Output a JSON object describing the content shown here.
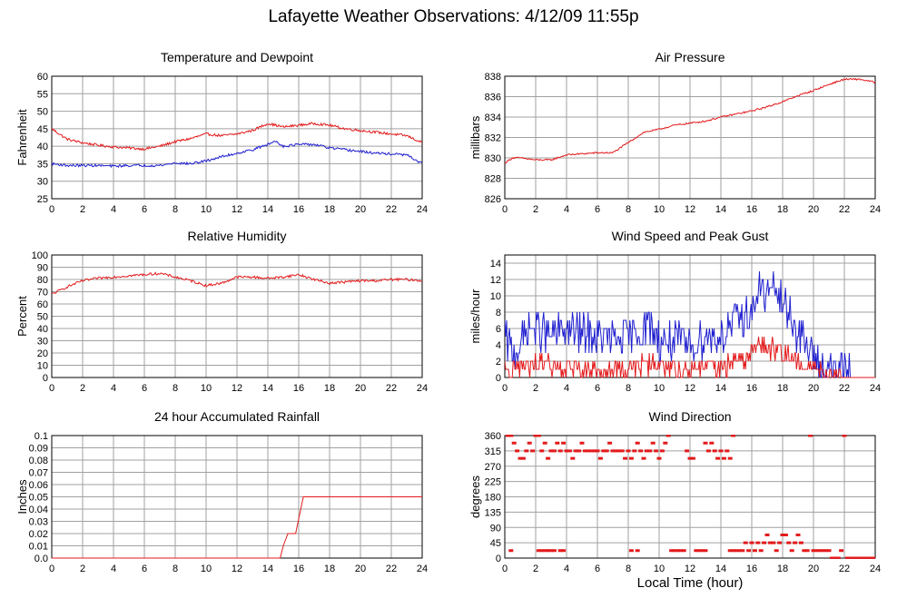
{
  "page": {
    "title": "Lafayette Weather Observations: 4/12/09 11:55p",
    "xlabel": "Local Time (hour)"
  },
  "colors": {
    "red": "#e31a1c",
    "blue": "#1f1fd0",
    "grid": "#a0a0a0"
  },
  "chart_data": [
    {
      "id": "temp",
      "type": "line",
      "title": "Temperature and Dewpoint",
      "ylabel": "Fahrenheit",
      "xlim": [
        0,
        24
      ],
      "ylim": [
        25,
        60
      ],
      "xticks": [
        0,
        2,
        4,
        6,
        8,
        10,
        12,
        14,
        16,
        18,
        20,
        22,
        24
      ],
      "yticks": [
        25,
        30,
        35,
        40,
        45,
        50,
        55,
        60
      ],
      "series": [
        {
          "color": "red",
          "noise": 0.35,
          "x": [
            0,
            0.5,
            1,
            2,
            3,
            4,
            5,
            6,
            7,
            8,
            9,
            10,
            11,
            12,
            13,
            14,
            14.5,
            15,
            16,
            17,
            18,
            19,
            20,
            21,
            22,
            23,
            24
          ],
          "y": [
            45,
            43.5,
            42,
            41,
            40.3,
            39.8,
            39.5,
            39.2,
            40,
            41.3,
            42.2,
            43.5,
            43,
            43.5,
            44.5,
            46.5,
            46,
            45.5,
            46,
            46.5,
            46,
            45,
            44.5,
            44,
            43.5,
            43,
            41
          ]
        },
        {
          "color": "blue",
          "noise": 0.35,
          "x": [
            0,
            1,
            2,
            3,
            4,
            5,
            6,
            7,
            8,
            9,
            10,
            11,
            12,
            13,
            14,
            14.5,
            15,
            16,
            17,
            18,
            19,
            20,
            21,
            22,
            23,
            24
          ],
          "y": [
            35,
            34.5,
            34.5,
            34.5,
            34.3,
            34.5,
            34.5,
            34.5,
            35.2,
            35,
            35.8,
            37,
            38,
            39,
            40.5,
            41.5,
            40,
            40.5,
            40.5,
            39.5,
            39,
            38.5,
            38,
            37.8,
            37.5,
            35
          ]
        }
      ]
    },
    {
      "id": "pressure",
      "type": "line",
      "title": "Air Pressure",
      "ylabel": "millibars",
      "xlim": [
        0,
        24
      ],
      "ylim": [
        826,
        838
      ],
      "xticks": [
        0,
        2,
        4,
        6,
        8,
        10,
        12,
        14,
        16,
        18,
        20,
        22,
        24
      ],
      "yticks": [
        826,
        828,
        830,
        832,
        834,
        836,
        838
      ],
      "series": [
        {
          "color": "red",
          "noise": 0.08,
          "x": [
            0,
            0.5,
            1,
            2,
            3,
            4,
            5,
            6,
            7,
            8,
            9,
            10,
            11,
            12,
            13,
            14,
            15,
            16,
            17,
            18,
            19,
            20,
            21,
            22,
            23,
            24
          ],
          "y": [
            829.5,
            830,
            830,
            829.8,
            829.8,
            830.3,
            830.4,
            830.5,
            830.5,
            831.5,
            832.5,
            832.8,
            833.2,
            833.4,
            833.6,
            834,
            834.3,
            834.6,
            835,
            835.5,
            836.1,
            836.6,
            837.2,
            837.7,
            837.7,
            837.4
          ]
        }
      ]
    },
    {
      "id": "humidity",
      "type": "line",
      "title": "Relative Humidity",
      "ylabel": "Percent",
      "xlim": [
        0,
        24
      ],
      "ylim": [
        0,
        100
      ],
      "xticks": [
        0,
        2,
        4,
        6,
        8,
        10,
        12,
        14,
        16,
        18,
        20,
        22,
        24
      ],
      "yticks": [
        0,
        10,
        20,
        30,
        40,
        50,
        60,
        70,
        80,
        90,
        100
      ],
      "series": [
        {
          "color": "red",
          "noise": 1.0,
          "x": [
            0,
            1,
            2,
            3,
            4,
            5,
            6,
            7,
            8,
            9,
            10,
            11,
            12,
            13,
            14,
            15,
            16,
            17,
            18,
            19,
            20,
            21,
            22,
            23,
            24
          ],
          "y": [
            68,
            74,
            79,
            81,
            82,
            83,
            84,
            85,
            82,
            79,
            75,
            77,
            82,
            82,
            81,
            82,
            84,
            80,
            77,
            78,
            79,
            79,
            80,
            80,
            79
          ]
        }
      ]
    },
    {
      "id": "wind",
      "type": "line",
      "title": "Wind Speed and Peak Gust",
      "ylabel": "miles/hour",
      "xlim": [
        0,
        24
      ],
      "ylim": [
        0,
        15
      ],
      "xticks": [
        0,
        2,
        4,
        6,
        8,
        10,
        12,
        14,
        16,
        18,
        20,
        22,
        24
      ],
      "yticks": [
        0,
        2,
        4,
        6,
        8,
        10,
        12,
        14
      ],
      "series": [
        {
          "color": "blue",
          "noise": 2.4,
          "x": [
            0,
            0.5,
            1,
            1.5,
            2,
            3,
            4,
            5,
            6,
            7,
            8,
            9,
            9.5,
            10,
            11,
            12,
            13,
            14,
            15,
            16,
            16.5,
            17,
            17.5,
            18,
            18.5,
            19,
            19.5,
            20,
            20.5,
            21,
            21.5,
            22,
            22.3,
            22.4,
            24
          ],
          "y": [
            5,
            3,
            4,
            6,
            6,
            5,
            6,
            5.5,
            5,
            4.5,
            5,
            6,
            6.5,
            4.5,
            4.5,
            4,
            5,
            5,
            7,
            8,
            11,
            10,
            11,
            9,
            8,
            5,
            4,
            2.5,
            1.5,
            1,
            0.5,
            1,
            1,
            0,
            0
          ]
        },
        {
          "color": "red",
          "noise": 1.3,
          "x": [
            0,
            1,
            2,
            3,
            4,
            5,
            6,
            7,
            8,
            9,
            10,
            11,
            12,
            13,
            14,
            15,
            16,
            16.5,
            17,
            18,
            18.5,
            19,
            20,
            20.5,
            21,
            22,
            24
          ],
          "y": [
            1.5,
            1,
            1.5,
            1.5,
            1.2,
            1.2,
            1,
            0.8,
            1.2,
            1.5,
            1.5,
            1.2,
            1,
            1,
            1.2,
            2,
            3,
            4,
            3.5,
            3,
            2.5,
            2,
            1,
            0.5,
            0.3,
            0,
            0
          ]
        }
      ]
    },
    {
      "id": "rain",
      "type": "line",
      "title": "24 hour Accumulated Rainfall",
      "ylabel": "Inches",
      "xlim": [
        0,
        24
      ],
      "ylim": [
        0,
        0.1
      ],
      "xticks": [
        0,
        2,
        4,
        6,
        8,
        10,
        12,
        14,
        16,
        18,
        20,
        22,
        24
      ],
      "yticks": [
        0.0,
        0.01,
        0.02,
        0.03,
        0.04,
        0.05,
        0.06,
        0.07,
        0.08,
        0.09,
        0.1
      ],
      "ytick_labels": [
        "0.0",
        "0.01",
        "0.02",
        "0.03",
        "0.04",
        "0.05",
        "0.06",
        "0.07",
        "0.08",
        "0.09",
        "0.1"
      ],
      "series": [
        {
          "color": "red",
          "noise": 0,
          "x": [
            0,
            14.8,
            14.8,
            15.0,
            15.0,
            15.3,
            15.3,
            15.8,
            15.8,
            16.3,
            16.3,
            24
          ],
          "y": [
            0,
            0,
            0.0,
            0.01,
            0.01,
            0.02,
            0.02,
            0.02,
            0.02,
            0.05,
            0.05,
            0.05
          ]
        }
      ]
    },
    {
      "id": "winddir",
      "type": "scatter",
      "title": "Wind Direction",
      "ylabel": "degrees",
      "xlim": [
        0,
        24
      ],
      "ylim": [
        0,
        360
      ],
      "xticks": [
        0,
        2,
        4,
        6,
        8,
        10,
        12,
        14,
        16,
        18,
        20,
        22,
        24
      ],
      "yticks": [
        0,
        45,
        90,
        135,
        180,
        225,
        270,
        315,
        360
      ],
      "series": [
        {
          "color": "red",
          "points": [
            [
              0.2,
              360
            ],
            [
              0.4,
              360
            ],
            [
              0.6,
              338
            ],
            [
              0.8,
              315
            ],
            [
              1.0,
              293
            ],
            [
              1.2,
              293
            ],
            [
              0.4,
              22
            ],
            [
              1.4,
              315
            ],
            [
              1.6,
              338
            ],
            [
              1.8,
              315
            ],
            [
              2.0,
              360
            ],
            [
              2.2,
              360
            ],
            [
              2.4,
              315
            ],
            [
              2.6,
              338
            ],
            [
              2.2,
              22
            ],
            [
              2.4,
              22
            ],
            [
              2.6,
              22
            ],
            [
              2.8,
              22
            ],
            [
              3.0,
              22
            ],
            [
              3.2,
              22
            ],
            [
              2.8,
              293
            ],
            [
              3.0,
              315
            ],
            [
              3.2,
              315
            ],
            [
              3.4,
              338
            ],
            [
              3.6,
              315
            ],
            [
              3.8,
              338
            ],
            [
              4.0,
              315
            ],
            [
              3.6,
              22
            ],
            [
              3.8,
              22
            ],
            [
              4.2,
              315
            ],
            [
              4.4,
              293
            ],
            [
              4.6,
              315
            ],
            [
              4.8,
              315
            ],
            [
              5.0,
              338
            ],
            [
              5.2,
              315
            ],
            [
              5.4,
              315
            ],
            [
              5.6,
              315
            ],
            [
              5.8,
              315
            ],
            [
              6.0,
              315
            ],
            [
              6.2,
              293
            ],
            [
              6.4,
              315
            ],
            [
              6.6,
              315
            ],
            [
              6.8,
              338
            ],
            [
              7.0,
              315
            ],
            [
              7.2,
              315
            ],
            [
              7.4,
              315
            ],
            [
              7.6,
              315
            ],
            [
              7.8,
              293
            ],
            [
              8.0,
              315
            ],
            [
              8.2,
              293
            ],
            [
              8.4,
              315
            ],
            [
              8.6,
              338
            ],
            [
              8.8,
              315
            ],
            [
              9.0,
              293
            ],
            [
              9.2,
              315
            ],
            [
              8.2,
              22
            ],
            [
              8.6,
              22
            ],
            [
              9.4,
              315
            ],
            [
              9.6,
              338
            ],
            [
              9.8,
              315
            ],
            [
              10.0,
              293
            ],
            [
              10.2,
              315
            ],
            [
              10.4,
              338
            ],
            [
              10.6,
              360
            ],
            [
              10.8,
              22
            ],
            [
              11.0,
              22
            ],
            [
              11.2,
              22
            ],
            [
              11.4,
              22
            ],
            [
              11.6,
              22
            ],
            [
              11.8,
              315
            ],
            [
              12.0,
              293
            ],
            [
              12.2,
              293
            ],
            [
              12.4,
              22
            ],
            [
              12.6,
              22
            ],
            [
              12.8,
              22
            ],
            [
              13.0,
              22
            ],
            [
              13.0,
              338
            ],
            [
              13.2,
              315
            ],
            [
              13.4,
              338
            ],
            [
              13.6,
              315
            ],
            [
              13.8,
              293
            ],
            [
              14.0,
              315
            ],
            [
              14.2,
              293
            ],
            [
              14.4,
              315
            ],
            [
              14.6,
              293
            ],
            [
              14.8,
              360
            ],
            [
              14.6,
              22
            ],
            [
              14.8,
              22
            ],
            [
              15.0,
              22
            ],
            [
              15.2,
              22
            ],
            [
              15.4,
              22
            ],
            [
              15.6,
              45
            ],
            [
              15.8,
              22
            ],
            [
              16.0,
              45
            ],
            [
              16.2,
              22
            ],
            [
              16.4,
              45
            ],
            [
              16.6,
              22
            ],
            [
              16.8,
              45
            ],
            [
              17.0,
              68
            ],
            [
              17.2,
              45
            ],
            [
              17.4,
              45
            ],
            [
              17.6,
              22
            ],
            [
              17.8,
              45
            ],
            [
              18.0,
              68
            ],
            [
              18.2,
              68
            ],
            [
              18.4,
              45
            ],
            [
              18.6,
              22
            ],
            [
              18.8,
              45
            ],
            [
              19.0,
              68
            ],
            [
              19.2,
              45
            ],
            [
              19.4,
              22
            ],
            [
              19.6,
              22
            ],
            [
              19.8,
              360
            ],
            [
              20.0,
              22
            ],
            [
              20.2,
              22
            ],
            [
              20.4,
              22
            ],
            [
              20.6,
              22
            ],
            [
              20.8,
              22
            ],
            [
              21.0,
              22
            ],
            [
              21.2,
              0
            ],
            [
              21.4,
              0
            ],
            [
              21.6,
              0
            ],
            [
              21.8,
              22
            ],
            [
              22.0,
              360
            ],
            [
              22.2,
              0
            ],
            [
              22.4,
              0
            ],
            [
              22.6,
              0
            ],
            [
              22.8,
              0
            ],
            [
              23.0,
              0
            ],
            [
              23.2,
              0
            ],
            [
              23.4,
              0
            ],
            [
              23.6,
              0
            ],
            [
              23.8,
              0
            ],
            [
              24.0,
              0
            ]
          ]
        }
      ]
    }
  ]
}
